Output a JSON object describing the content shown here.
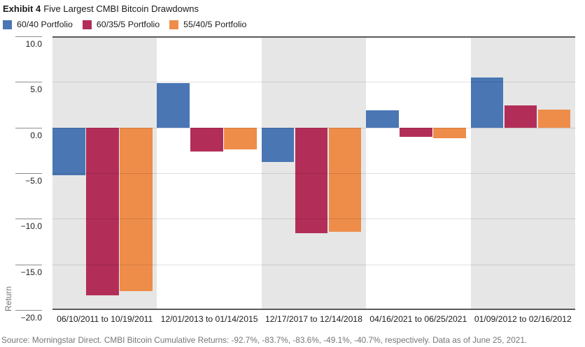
{
  "header": {
    "exhibit_label": "Exhibit 4",
    "title": "Five Largest CMBI Bitcoin Drawdowns"
  },
  "chart_data": {
    "type": "bar",
    "title": "Five Largest CMBI Bitcoin Drawdowns",
    "categories": [
      "06/10/2011 to 10/19/2011",
      "12/01/2013 to 01/14/2015",
      "12/17/2017 to 12/14/2018",
      "04/16/2021 to 06/25/2021",
      "01/09/2012 to 02/16/2012"
    ],
    "series": [
      {
        "name": "60/40 Portfolio",
        "color": "#4a76b4",
        "values": [
          -5.2,
          4.9,
          -3.8,
          1.9,
          5.5
        ]
      },
      {
        "name": "60/35/5 Portfolio",
        "color": "#b22e58",
        "values": [
          -18.4,
          -2.6,
          -11.6,
          -1.0,
          2.4
        ]
      },
      {
        "name": "55/40/5 Portfolio",
        "color": "#ee8d4a",
        "values": [
          -17.9,
          -2.4,
          -11.4,
          -1.2,
          2.0
        ]
      }
    ],
    "xlabel": "",
    "ylabel": "Return",
    "ylim": [
      -20,
      10
    ],
    "ytick_step": 5,
    "yticks_labels": [
      "10.0",
      "5.0",
      "0.0",
      "−5.0",
      "−10.0",
      "−15.0",
      "−20.0"
    ],
    "grid": true,
    "legend_position": "top-left",
    "band_colors": [
      "#e6e6e6",
      "#ffffff"
    ],
    "colors": {
      "axis_line": "#5a5a5a",
      "tick": "#8c8c8c",
      "gridline": "#d9d9d9",
      "text": "#1a1a1a",
      "muted_text": "#757575"
    }
  },
  "footer": {
    "source": "Source: Morningstar Direct. CMBI Bitcoin Cumulative Returns: -92.7%, -83.7%, -83.6%, -49.1%, -40.7%, respectively. Data as of June 25, 2021."
  }
}
